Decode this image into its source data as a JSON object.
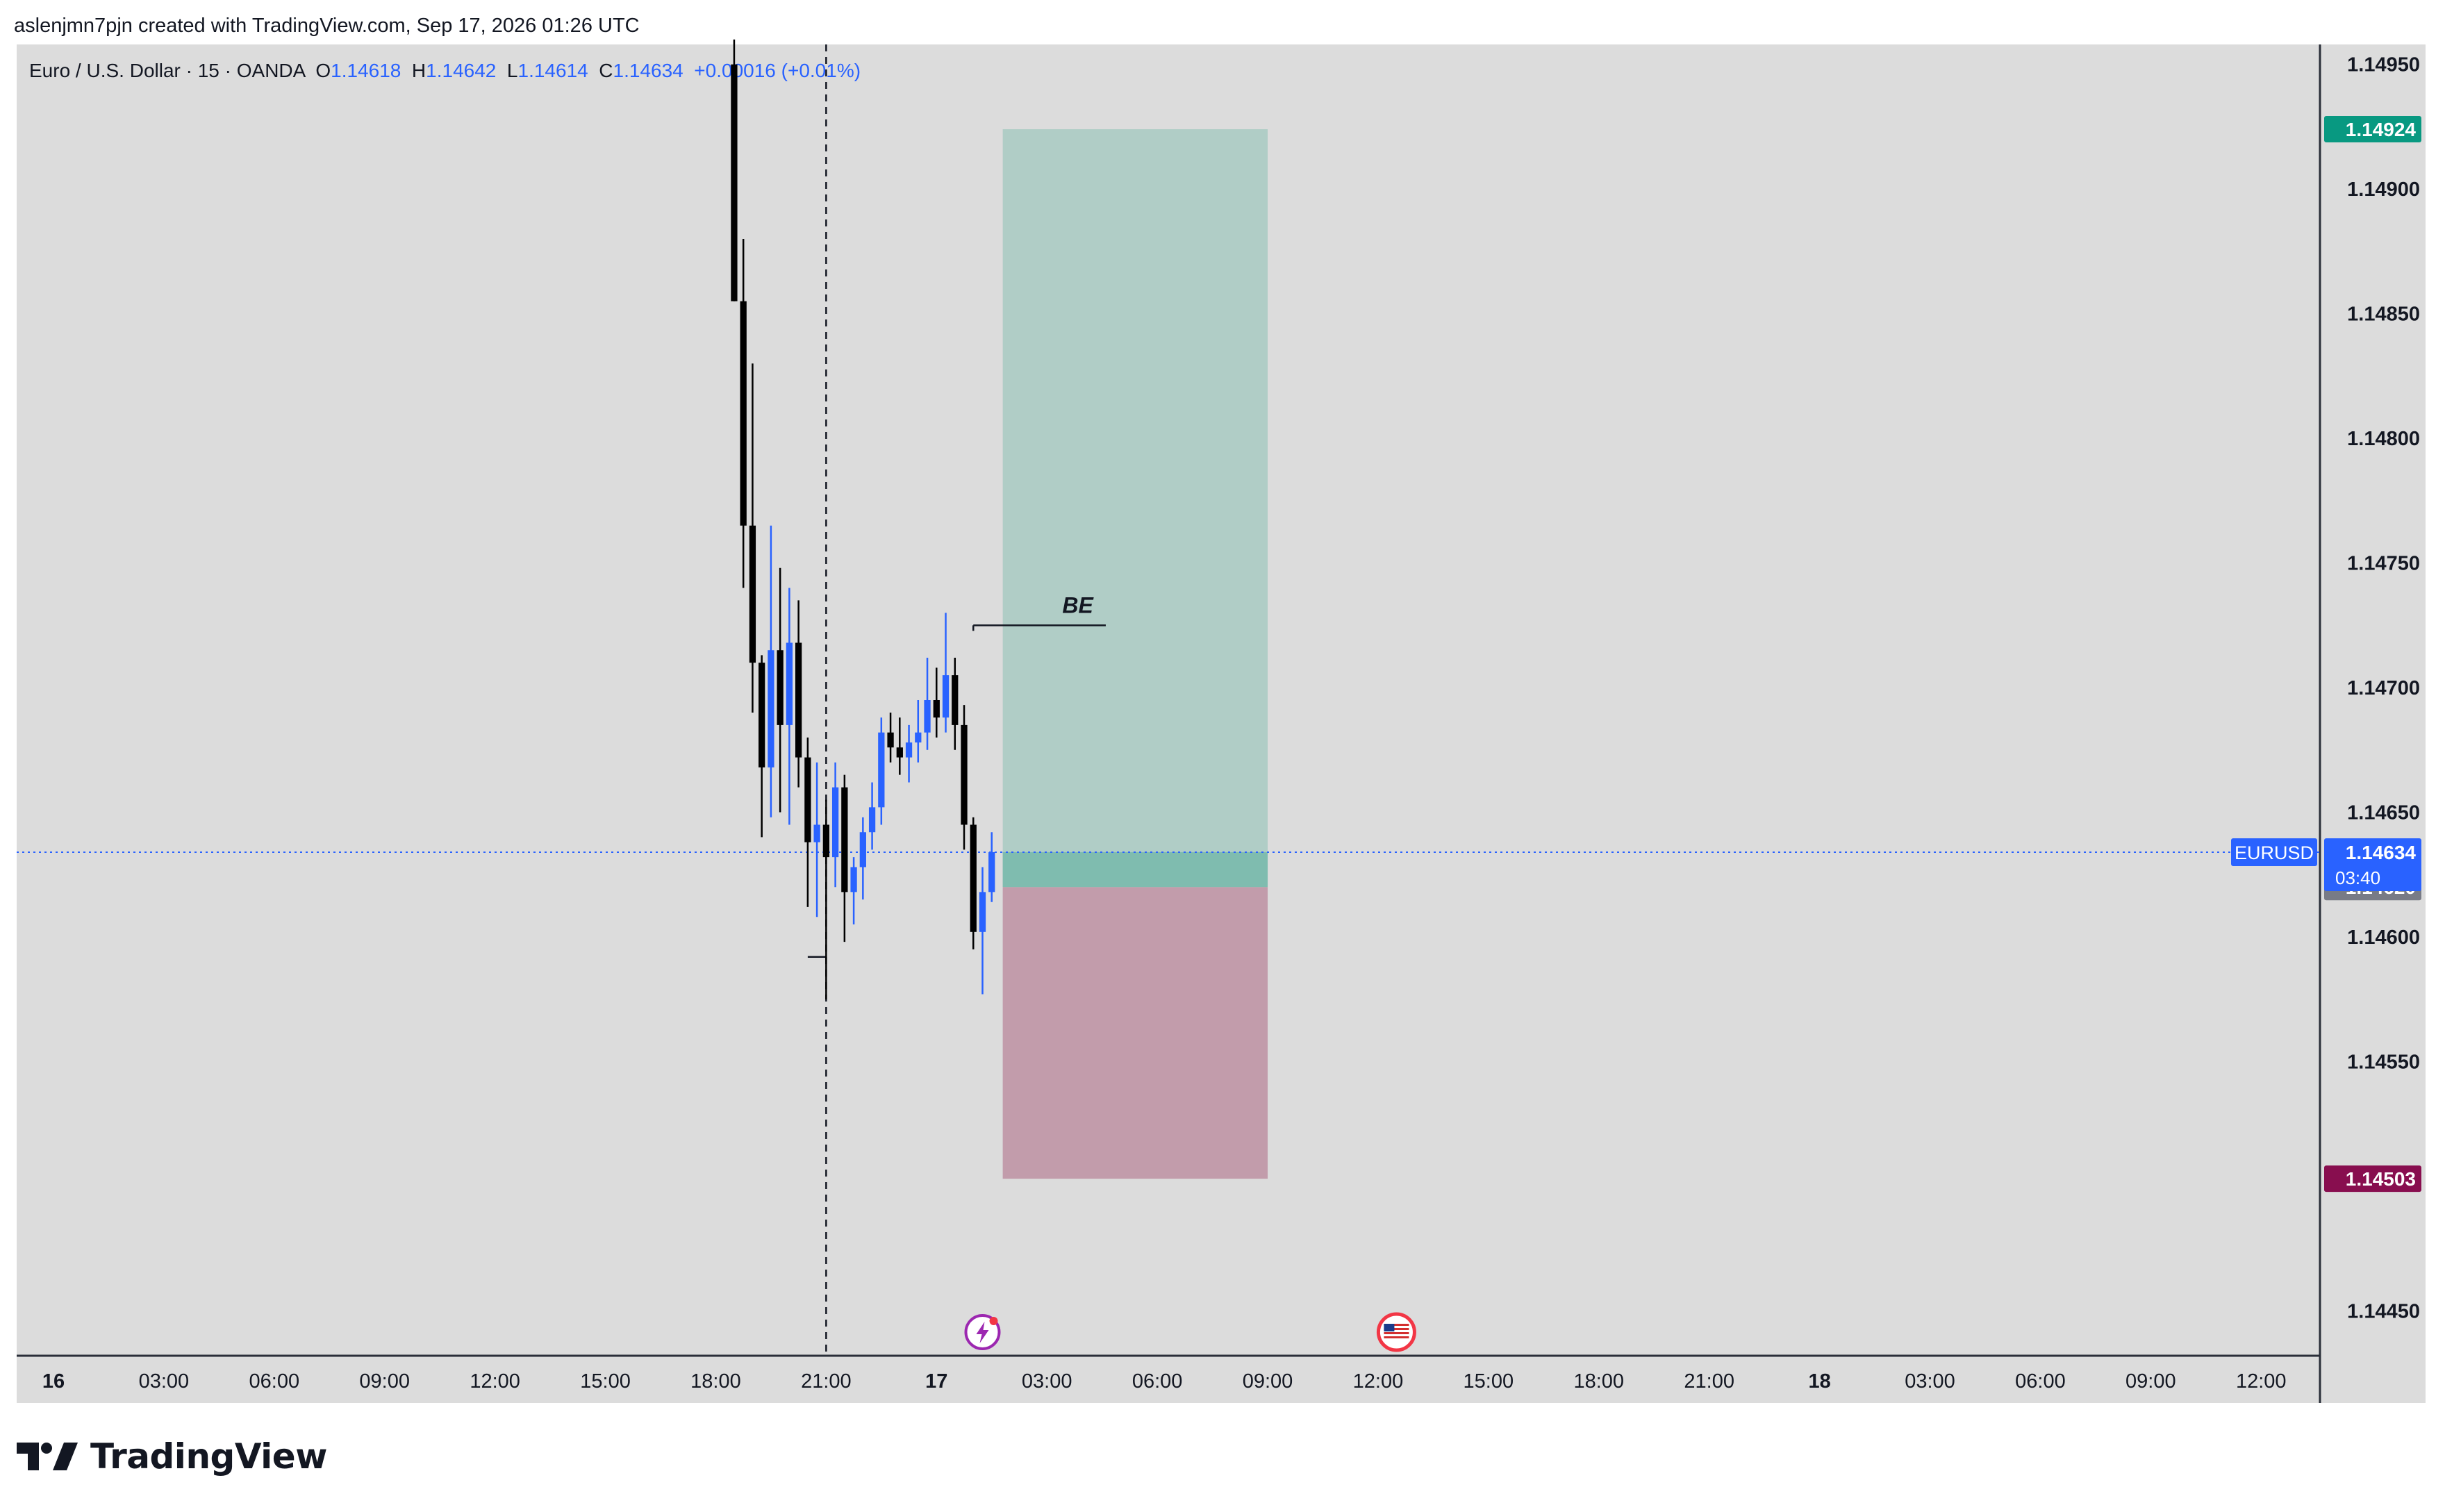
{
  "header": {
    "attribution": "aslenjmn7pjn created with TradingView.com, Sep 17, 2026 01:26 UTC"
  },
  "legend": {
    "symbol": "Euro / U.S. Dollar · 15 · OANDA",
    "open_label": "O",
    "open": "1.14618",
    "high_label": "H",
    "high": "1.14642",
    "low_label": "L",
    "low": "1.14614",
    "close_label": "C",
    "close": "1.14634",
    "change": "+0.00016 (+0.01%)"
  },
  "brand": {
    "name": "TradingView",
    "logo_icon": "tradingview-logo-icon"
  },
  "colors": {
    "chart_bg": "#dcdcdc",
    "bull": "#2962ff",
    "bear": "#000000",
    "accent_blue": "#2962ff",
    "profit_zone": "#b0cdc6",
    "loss_zone": "#c29cab",
    "target_badge": "#089981",
    "stop_badge": "#880e4f"
  },
  "chart_data": {
    "type": "candlestick",
    "symbol": "EURUSD",
    "timeframe": "15",
    "x_ticks": [
      {
        "label": "16",
        "h": 0,
        "bold": true
      },
      {
        "label": "03:00",
        "h": 3
      },
      {
        "label": "06:00",
        "h": 6
      },
      {
        "label": "09:00",
        "h": 9
      },
      {
        "label": "12:00",
        "h": 12
      },
      {
        "label": "15:00",
        "h": 15
      },
      {
        "label": "18:00",
        "h": 18
      },
      {
        "label": "21:00",
        "h": 21
      },
      {
        "label": "17",
        "h": 24,
        "bold": true
      },
      {
        "label": "03:00",
        "h": 27
      },
      {
        "label": "06:00",
        "h": 30
      },
      {
        "label": "09:00",
        "h": 33
      },
      {
        "label": "12:00",
        "h": 36
      },
      {
        "label": "15:00",
        "h": 39
      },
      {
        "label": "18:00",
        "h": 42
      },
      {
        "label": "21:00",
        "h": 45
      },
      {
        "label": "18",
        "h": 48,
        "bold": true
      },
      {
        "label": "03:00",
        "h": 51
      },
      {
        "label": "06:00",
        "h": 54
      },
      {
        "label": "09:00",
        "h": 57
      },
      {
        "label": "12:00",
        "h": 60
      }
    ],
    "y_ticks": [
      "1.14950",
      "1.14900",
      "1.14850",
      "1.14800",
      "1.14750",
      "1.14700",
      "1.14650",
      "1.14600",
      "1.14550",
      "1.14450"
    ],
    "y_range": [
      1.14432,
      1.14958
    ],
    "x_range_hours": [
      -1.0,
      61.6
    ],
    "candles": [
      {
        "t": 18.5,
        "o": 1.1495,
        "h": 1.1496,
        "l": 1.14855,
        "c": 1.14855
      },
      {
        "t": 18.75,
        "o": 1.14855,
        "h": 1.1488,
        "l": 1.1474,
        "c": 1.14765
      },
      {
        "t": 19.0,
        "o": 1.14765,
        "h": 1.1483,
        "l": 1.1469,
        "c": 1.1471
      },
      {
        "t": 19.25,
        "o": 1.1471,
        "h": 1.14713,
        "l": 1.1464,
        "c": 1.14668
      },
      {
        "t": 19.5,
        "o": 1.14668,
        "h": 1.14765,
        "l": 1.14648,
        "c": 1.14715
      },
      {
        "t": 19.75,
        "o": 1.14715,
        "h": 1.14748,
        "l": 1.1465,
        "c": 1.14685
      },
      {
        "t": 20.0,
        "o": 1.14685,
        "h": 1.1474,
        "l": 1.14645,
        "c": 1.14718
      },
      {
        "t": 20.25,
        "o": 1.14718,
        "h": 1.14735,
        "l": 1.1466,
        "c": 1.14672
      },
      {
        "t": 20.5,
        "o": 1.14672,
        "h": 1.1468,
        "l": 1.14612,
        "c": 1.14638
      },
      {
        "t": 20.75,
        "o": 1.14638,
        "h": 1.1467,
        "l": 1.14608,
        "c": 1.14645
      },
      {
        "t": 21.0,
        "o": 1.14645,
        "h": 1.14655,
        "l": 1.14575,
        "c": 1.14632
      },
      {
        "t": 21.25,
        "o": 1.14632,
        "h": 1.1467,
        "l": 1.1462,
        "c": 1.1466
      },
      {
        "t": 21.5,
        "o": 1.1466,
        "h": 1.14665,
        "l": 1.14598,
        "c": 1.14618
      },
      {
        "t": 21.75,
        "o": 1.14618,
        "h": 1.14632,
        "l": 1.14605,
        "c": 1.14628
      },
      {
        "t": 22.0,
        "o": 1.14628,
        "h": 1.14648,
        "l": 1.14615,
        "c": 1.14642
      },
      {
        "t": 22.25,
        "o": 1.14642,
        "h": 1.14662,
        "l": 1.14635,
        "c": 1.14652
      },
      {
        "t": 22.5,
        "o": 1.14652,
        "h": 1.14688,
        "l": 1.14645,
        "c": 1.14682
      },
      {
        "t": 22.75,
        "o": 1.14682,
        "h": 1.1469,
        "l": 1.1467,
        "c": 1.14676
      },
      {
        "t": 23.0,
        "o": 1.14676,
        "h": 1.14688,
        "l": 1.14665,
        "c": 1.14672
      },
      {
        "t": 23.25,
        "o": 1.14672,
        "h": 1.14685,
        "l": 1.14662,
        "c": 1.14678
      },
      {
        "t": 23.5,
        "o": 1.14678,
        "h": 1.14695,
        "l": 1.1467,
        "c": 1.14682
      },
      {
        "t": 23.75,
        "o": 1.14682,
        "h": 1.14712,
        "l": 1.14675,
        "c": 1.14695
      },
      {
        "t": 24.0,
        "o": 1.14695,
        "h": 1.14708,
        "l": 1.1468,
        "c": 1.14688
      },
      {
        "t": 24.25,
        "o": 1.14688,
        "h": 1.1473,
        "l": 1.14682,
        "c": 1.14705
      },
      {
        "t": 24.5,
        "o": 1.14705,
        "h": 1.14712,
        "l": 1.14675,
        "c": 1.14685
      },
      {
        "t": 24.75,
        "o": 1.14685,
        "h": 1.14693,
        "l": 1.14635,
        "c": 1.14645
      },
      {
        "t": 25.0,
        "o": 1.14645,
        "h": 1.14648,
        "l": 1.14595,
        "c": 1.14602
      },
      {
        "t": 25.25,
        "o": 1.14602,
        "h": 1.14628,
        "l": 1.14577,
        "c": 1.14618
      },
      {
        "t": 25.5,
        "o": 1.14618,
        "h": 1.14642,
        "l": 1.14614,
        "c": 1.14634
      }
    ],
    "position": {
      "side": "long",
      "target": 1.14924,
      "target_label": "1.14924",
      "entry": 1.1462,
      "entry_label": "1.14620",
      "stop": 1.14503,
      "stop_label": "1.14503",
      "start_h": 25.8,
      "end_h": 33.0
    },
    "current_price": 1.14634,
    "current_price_label": "1.14634",
    "countdown": "03:40",
    "symbol_tag": "EURUSD",
    "annotation": {
      "text": "BE",
      "price": 1.14725,
      "start_h": 25.0,
      "end_h": 28.6
    },
    "hline_21": {
      "price": 1.14592,
      "start_h": 20.5,
      "end_h": 21.0
    },
    "vertical_line_h": 21.0,
    "events": [
      {
        "icon": "lightning-event-icon",
        "h": 25.25
      },
      {
        "icon": "us-flag-event-icon",
        "h": 36.5
      }
    ]
  }
}
